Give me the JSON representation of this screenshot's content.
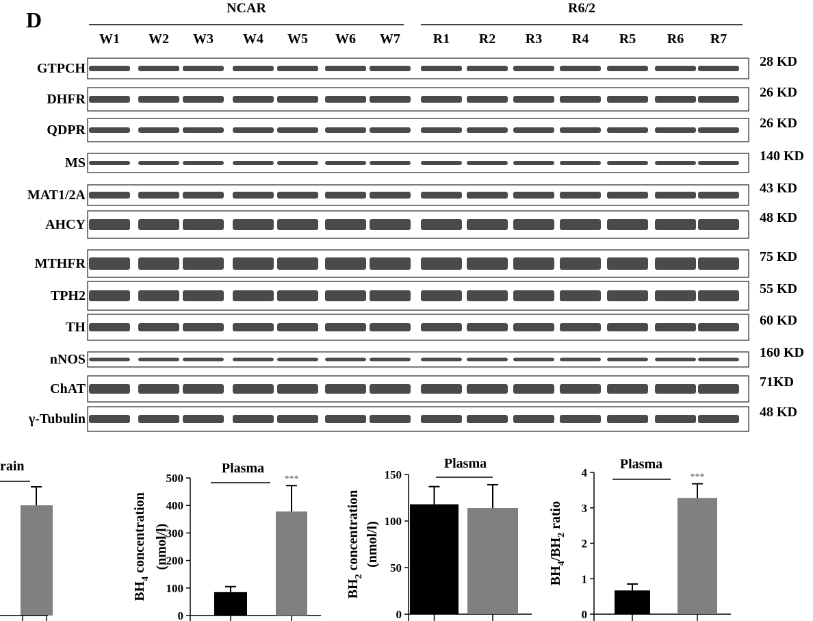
{
  "panel_label": "D",
  "blot": {
    "groups": [
      {
        "name": "NCAR",
        "lanes": [
          "W1",
          "W2",
          "W3",
          "W4",
          "W5",
          "W6",
          "W7"
        ]
      },
      {
        "name": "R6/2",
        "lanes": [
          "R1",
          "R2",
          "R3",
          "R4",
          "R5",
          "R6",
          "R7"
        ]
      }
    ],
    "proteins": [
      {
        "name": "GTPCH",
        "size": "28 KD"
      },
      {
        "name": "DHFR",
        "size": "26 KD"
      },
      {
        "name": "QDPR",
        "size": "26 KD"
      },
      {
        "name": "MS",
        "size": "140 KD"
      },
      {
        "name": "MAT1/2A",
        "size": "43 KD"
      },
      {
        "name": "AHCY",
        "size": "48 KD"
      },
      {
        "name": "MTHFR",
        "size": "75 KD"
      },
      {
        "name": "TPH2",
        "size": "55 KD"
      },
      {
        "name": "TH",
        "size": "60 KD"
      },
      {
        "name": "nNOS",
        "size": "160 KD"
      },
      {
        "name": "ChAT",
        "size": "71KD"
      },
      {
        "name": "γ-Tubulin",
        "size": "48 KD"
      }
    ]
  },
  "partial_chart_title": "rain",
  "chart_data": [
    {
      "type": "bar",
      "title": "Plasma",
      "ylabel_parts": [
        {
          "text": "BH"
        },
        {
          "text": "4",
          "subscript": true
        },
        {
          "text": " concentration"
        }
      ],
      "ylabel_line2": "(nmol/l)",
      "ylim": [
        0,
        500
      ],
      "yticks": [
        0,
        100,
        200,
        300,
        400,
        500
      ],
      "values": [
        85,
        378
      ],
      "errors": [
        20,
        94
      ],
      "colors": [
        "#000000",
        "#808080"
      ],
      "annotations": [
        null,
        "***"
      ]
    },
    {
      "type": "bar",
      "title": "Plasma",
      "ylabel_parts": [
        {
          "text": "BH"
        },
        {
          "text": "2",
          "subscript": true
        },
        {
          "text": " concentration"
        }
      ],
      "ylabel_line2": "(nmol/l)",
      "ylim": [
        0,
        150
      ],
      "yticks": [
        0,
        50,
        100,
        150
      ],
      "values": [
        118,
        114
      ],
      "errors": [
        19,
        25
      ],
      "colors": [
        "#000000",
        "#808080"
      ],
      "annotations": [
        null,
        null
      ]
    },
    {
      "type": "bar",
      "title": "Plasma",
      "ylabel_parts": [
        {
          "text": "BH"
        },
        {
          "text": "4",
          "subscript": true
        },
        {
          "text": "/BH"
        },
        {
          "text": "2",
          "subscript": true
        },
        {
          "text": " ratio"
        }
      ],
      "ylim": [
        0,
        4
      ],
      "yticks": [
        0,
        1,
        2,
        3,
        4
      ],
      "values": [
        0.67,
        3.28
      ],
      "errors": [
        0.18,
        0.4
      ],
      "colors": [
        "#000000",
        "#808080"
      ],
      "annotations": [
        null,
        "***"
      ]
    }
  ]
}
